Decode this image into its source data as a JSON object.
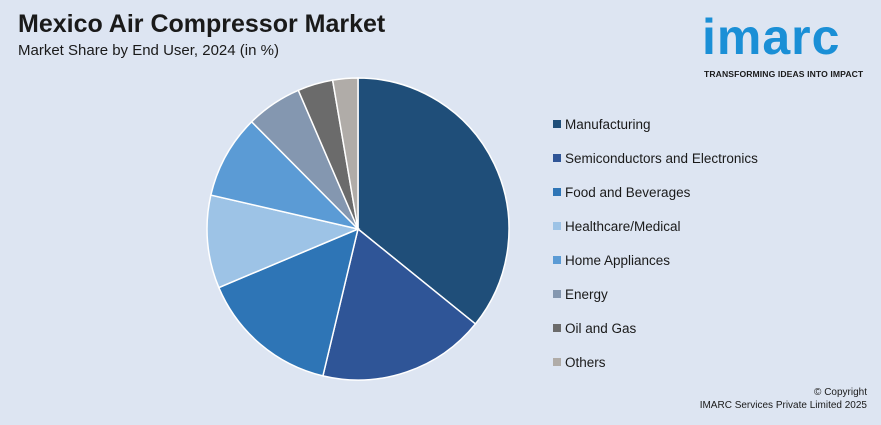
{
  "header": {
    "title": "Mexico Air Compressor Market",
    "subtitle": "Market Share by End User, 2024 (in %)"
  },
  "logo": {
    "word": "imarc",
    "tagline": "TRANSFORMING IDEAS INTO IMPACT",
    "color": "#1a8fd6"
  },
  "chart_data": {
    "type": "pie",
    "categories": [
      "Manufacturing",
      "Semiconductors and Electronics",
      "Food and Beverages",
      "Healthcare/Medical",
      "Home Appliances",
      "Energy",
      "Oil and Gas",
      "Others"
    ],
    "values": [
      36,
      18,
      15,
      10,
      9,
      6,
      3.8,
      2.7
    ],
    "colors": [
      "#1f4e79",
      "#2f5597",
      "#2e75b6",
      "#9dc3e6",
      "#5b9bd5",
      "#8497b0",
      "#6b6b6b",
      "#b0aca8"
    ],
    "legend_position": "right"
  },
  "footer": {
    "copyright_line1": "© Copyright",
    "copyright_line2": "IMARC Services Private Limited 2025"
  }
}
